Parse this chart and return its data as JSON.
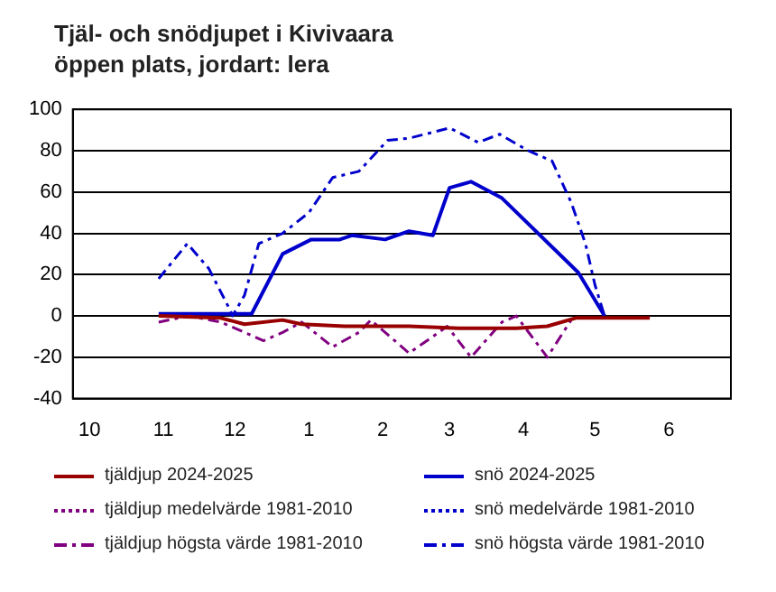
{
  "chart_data": {
    "type": "line",
    "title": "Tjäl- och snödjupet i Kivivaara",
    "subtitle": "öppen plats, jordart: lera",
    "xlim": [
      "2024-10-08",
      "2025-07-11"
    ],
    "xticks": [
      {
        "value": "2024-10-15",
        "label": "10"
      },
      {
        "value": "2024-11-15",
        "label": "11"
      },
      {
        "value": "2024-12-15",
        "label": "12"
      },
      {
        "value": "2025-01-15",
        "label": "1"
      },
      {
        "value": "2025-02-15",
        "label": "2"
      },
      {
        "value": "2025-03-15",
        "label": "3"
      },
      {
        "value": "2025-04-15",
        "label": "4"
      },
      {
        "value": "2025-05-15",
        "label": "5"
      },
      {
        "value": "2025-06-15",
        "label": "6"
      }
    ],
    "ylim": [
      -40,
      100
    ],
    "yticks": [
      -40,
      -20,
      0,
      20,
      40,
      60,
      80,
      100
    ],
    "grid": "y",
    "legend": "bottom",
    "marker": "none",
    "series": [
      {
        "name": "tjäldjup 2024-2025",
        "color": "#990000",
        "line_style": "solid",
        "x": [
          "2024-11-13",
          "2024-12-09",
          "2024-12-19",
          "2025-01-04",
          "2025-01-12",
          "2025-01-30",
          "2025-02-26",
          "2025-03-19",
          "2025-04-12",
          "2025-04-25",
          "2025-05-07",
          "2025-06-07"
        ],
        "values": [
          0,
          -1,
          -4,
          -2,
          -4,
          -5,
          -5,
          -6,
          -6,
          -5,
          -1,
          -1
        ]
      },
      {
        "name": "tjäldjup medelvärde 1981-2010",
        "color": "#800080",
        "line_style": "dotted"
      },
      {
        "name": "tjäldjup högsta värde 1981-2010",
        "color": "#800080",
        "line_style": "dashed",
        "x": [
          "2024-11-13",
          "2024-11-26",
          "2024-12-09",
          "2024-12-19",
          "2024-12-27",
          "2025-01-04",
          "2025-01-12",
          "2025-01-25",
          "2025-02-05",
          "2025-02-10",
          "2025-02-26",
          "2025-03-08",
          "2025-03-14",
          "2025-03-24",
          "2025-04-06",
          "2025-04-12",
          "2025-04-25",
          "2025-05-05"
        ],
        "values": [
          -3,
          0,
          -3,
          -8,
          -12,
          -8,
          -3,
          -15,
          -8,
          -2,
          -18,
          -10,
          -5,
          -20,
          -3,
          0,
          -20,
          -2
        ]
      },
      {
        "name": "snö 2024-2025",
        "color": "#0000cc",
        "line_style": "solid",
        "x": [
          "2024-11-13",
          "2024-12-22",
          "2025-01-04",
          "2025-01-16",
          "2025-01-28",
          "2025-02-02",
          "2025-02-16",
          "2025-02-26",
          "2025-03-08",
          "2025-03-15",
          "2025-03-24",
          "2025-04-06",
          "2025-05-08",
          "2025-05-19"
        ],
        "values": [
          1,
          1,
          30,
          37,
          37,
          39,
          37,
          41,
          39,
          62,
          65,
          57,
          21,
          0
        ]
      },
      {
        "name": "snö medelvärde 1981-2010",
        "color": "#0000cc",
        "line_style": "dotted"
      },
      {
        "name": "snö högsta värde 1981-2010",
        "color": "#0000cc",
        "line_style": "dashed",
        "x": [
          "2024-11-13",
          "2024-11-25",
          "2024-12-04",
          "2024-12-12",
          "2024-12-14",
          "2024-12-19",
          "2024-12-25",
          "2025-01-04",
          "2025-01-15",
          "2025-01-25",
          "2025-02-05",
          "2025-02-17",
          "2025-02-26",
          "2025-03-15",
          "2025-03-27",
          "2025-04-05",
          "2025-04-17",
          "2025-04-27",
          "2025-05-05",
          "2025-05-11",
          "2025-05-15",
          "2025-05-19"
        ],
        "values": [
          18,
          35,
          23,
          5,
          0,
          10,
          35,
          40,
          50,
          67,
          70,
          85,
          86,
          91,
          84,
          88,
          80,
          75,
          55,
          35,
          15,
          0
        ]
      }
    ]
  }
}
